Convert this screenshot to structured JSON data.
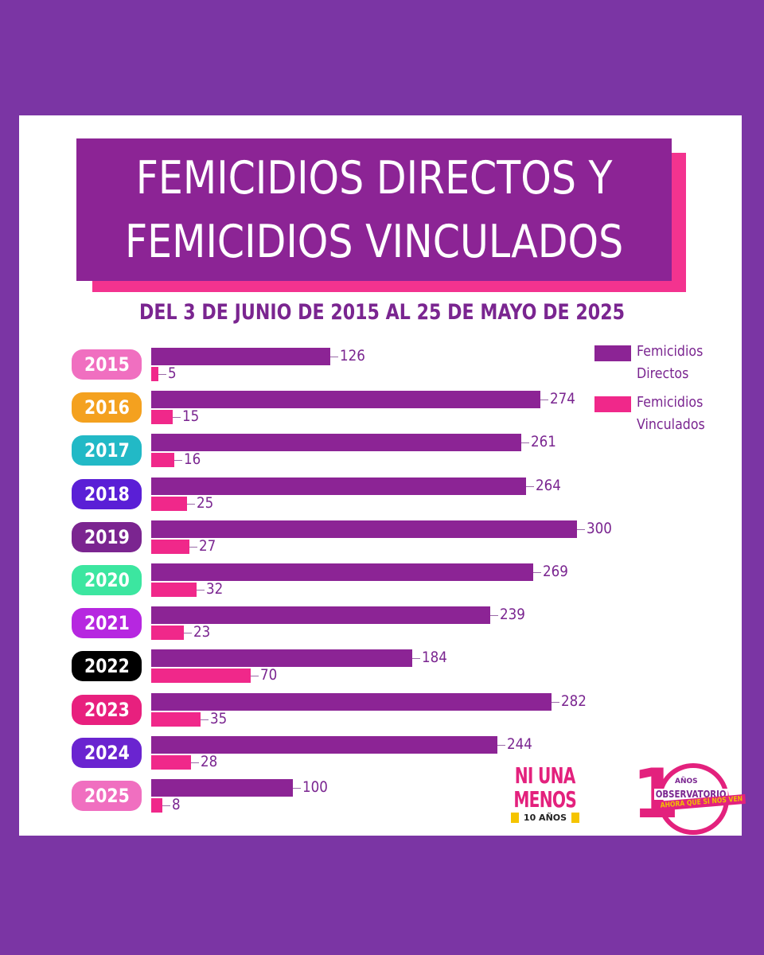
{
  "chart_data": {
    "type": "bar",
    "orientation": "horizontal",
    "title_lines": [
      "FEMICIDIOS DIRECTOS Y",
      "FEMICIDIOS VINCULADOS"
    ],
    "subtitle": "DEL 3 DE JUNIO DE 2015 AL 25 DE MAYO DE 2025",
    "categories": [
      "2015",
      "2016",
      "2017",
      "2018",
      "2019",
      "2020",
      "2021",
      "2022",
      "2023",
      "2024",
      "2025"
    ],
    "category_colors": [
      "#f06fc0",
      "#f4a11f",
      "#22b9c6",
      "#5a1fd6",
      "#7b2590",
      "#3ce6a0",
      "#b627e0",
      "#000000",
      "#e8207e",
      "#6a24d0",
      "#f06fc0"
    ],
    "series": [
      {
        "name": "Femicidios Directos",
        "values": [
          126,
          274,
          261,
          264,
          300,
          269,
          239,
          184,
          282,
          244,
          100
        ],
        "color": "#8c2495"
      },
      {
        "name": "Femicidios Vinculados",
        "values": [
          5,
          15,
          16,
          25,
          27,
          32,
          23,
          70,
          35,
          28,
          8
        ],
        "color": "#f0288a"
      }
    ],
    "legend": {
      "position": "top-right",
      "entries": [
        [
          "Femicidios",
          "Directos"
        ],
        [
          "Femicidios",
          "Vinculados"
        ]
      ]
    },
    "xlim": [
      0,
      300
    ]
  },
  "logos": {
    "ni_una_menos": {
      "line1": "NI UNA",
      "line2": "MENOS",
      "sub": "10 AÑOS"
    },
    "observatorio": {
      "digit": "1",
      "anos": "AÑOS",
      "name": "OBSERVATORIO",
      "tag": "AHORA QUE SÍ NOS VEN"
    }
  }
}
